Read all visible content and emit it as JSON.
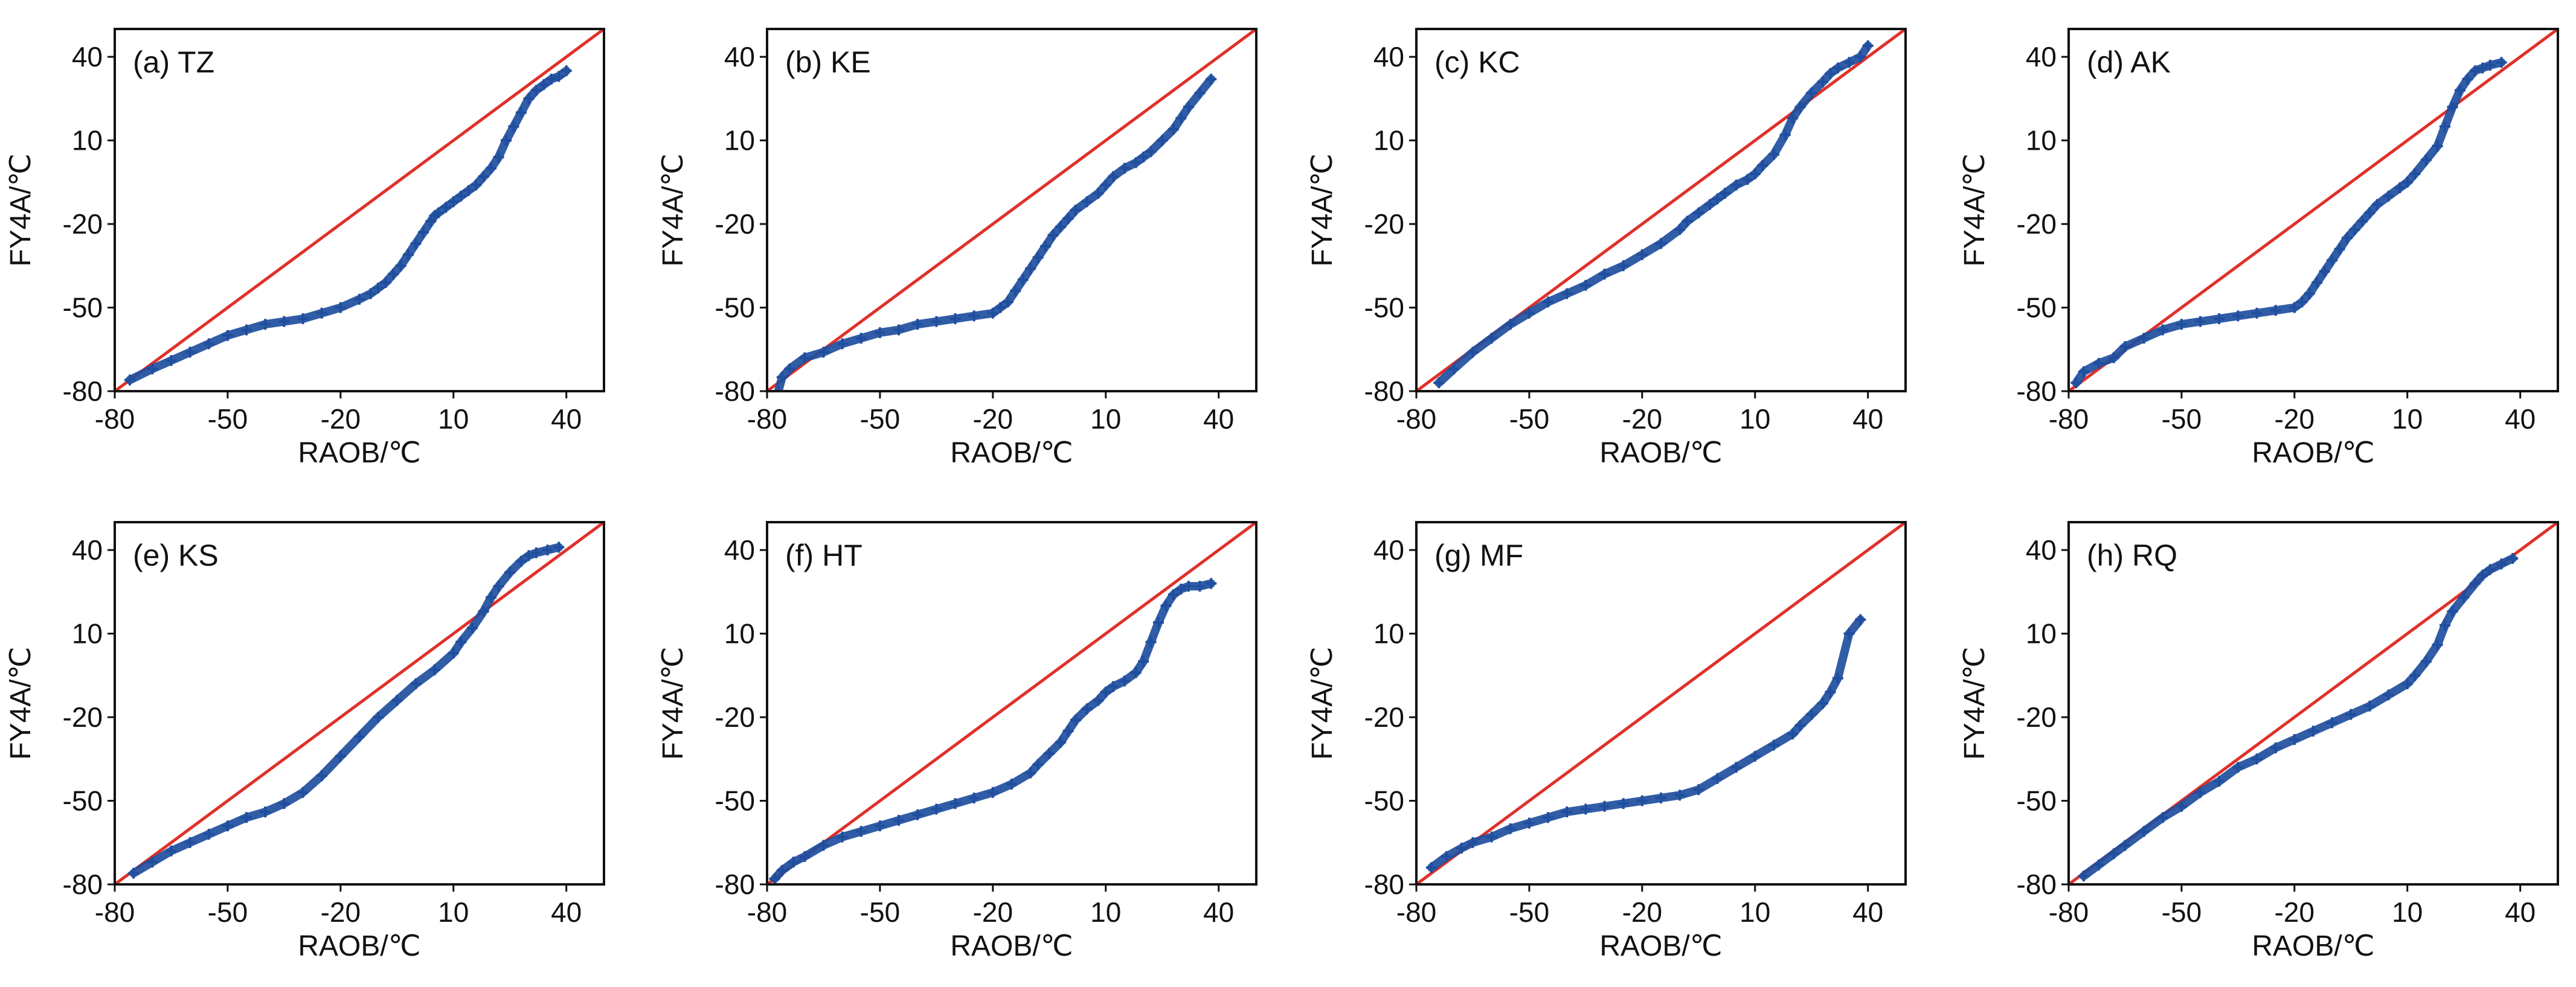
{
  "figure": {
    "description_title": "QQ-style scatter panels of FY4A vs RAOB temperature"
  },
  "colors": {
    "points": "#1f4e9e",
    "reference_line": "#e0302a",
    "axes": "#111111"
  },
  "chart_data": [
    {
      "type": "scatter",
      "title": "(a) TZ",
      "xlabel": "RAOB/℃",
      "ylabel": "FY4A/℃",
      "xlim": [
        -80,
        50
      ],
      "ylim": [
        -80,
        50
      ],
      "xticks": [
        -80,
        -50,
        -20,
        10,
        40
      ],
      "yticks": [
        -80,
        -50,
        -20,
        10,
        40
      ],
      "reference_line": "y = x",
      "series": [
        {
          "name": "FY4A vs RAOB",
          "x": [
            -76,
            -70,
            -65,
            -60,
            -55,
            -50,
            -45,
            -40,
            -35,
            -30,
            -25,
            -20,
            -15,
            -12,
            -10,
            -8,
            -6,
            -4,
            -2,
            0,
            2,
            4,
            5,
            6,
            8,
            10,
            12,
            14,
            16,
            18,
            20,
            22,
            24,
            26,
            28,
            30,
            32,
            34,
            36,
            38,
            40
          ],
          "y": [
            -76,
            -72,
            -69,
            -66,
            -63,
            -60,
            -58,
            -56,
            -55,
            -54,
            -52,
            -50,
            -47,
            -45,
            -43,
            -41,
            -38,
            -35,
            -31,
            -27,
            -23,
            -19,
            -17,
            -16,
            -14,
            -12,
            -10,
            -8,
            -6,
            -3,
            0,
            4,
            10,
            15,
            20,
            25,
            28,
            30,
            32,
            33,
            35
          ]
        }
      ]
    },
    {
      "type": "scatter",
      "title": "(b) KE",
      "xlabel": "RAOB/℃",
      "ylabel": "FY4A/℃",
      "xlim": [
        -80,
        50
      ],
      "ylim": [
        -80,
        50
      ],
      "xticks": [
        -80,
        -50,
        -20,
        10,
        40
      ],
      "yticks": [
        -80,
        -50,
        -20,
        10,
        40
      ],
      "reference_line": "y = x",
      "series": [
        {
          "name": "FY4A vs RAOB",
          "x": [
            -77,
            -76,
            -74,
            -70,
            -65,
            -60,
            -55,
            -50,
            -45,
            -40,
            -35,
            -30,
            -25,
            -20,
            -18,
            -16,
            -14,
            -12,
            -10,
            -8,
            -6,
            -4,
            -2,
            0,
            2,
            5,
            8,
            10,
            12,
            15,
            18,
            20,
            22,
            25,
            28,
            30,
            32,
            35,
            38
          ],
          "y": [
            -80,
            -75,
            -72,
            -68,
            -66,
            -63,
            -61,
            -59,
            -58,
            -56,
            -55,
            -54,
            -53,
            -52,
            -50,
            -48,
            -44,
            -40,
            -36,
            -32,
            -28,
            -24,
            -21,
            -18,
            -15,
            -12,
            -9,
            -6,
            -3,
            0,
            2,
            4,
            6,
            10,
            14,
            18,
            22,
            27,
            32
          ]
        }
      ]
    },
    {
      "type": "scatter",
      "title": "(c) KC",
      "xlabel": "RAOB/℃",
      "ylabel": "FY4A/℃",
      "xlim": [
        -80,
        50
      ],
      "ylim": [
        -80,
        50
      ],
      "xticks": [
        -80,
        -50,
        -20,
        10,
        40
      ],
      "yticks": [
        -80,
        -50,
        -20,
        10,
        40
      ],
      "reference_line": "y = x",
      "series": [
        {
          "name": "FY4A vs RAOB",
          "x": [
            -74,
            -70,
            -65,
            -60,
            -55,
            -50,
            -45,
            -40,
            -35,
            -30,
            -25,
            -20,
            -15,
            -10,
            -8,
            -5,
            -2,
            0,
            2,
            5,
            8,
            10,
            12,
            15,
            18,
            20,
            22,
            25,
            28,
            30,
            32,
            35,
            38,
            40
          ],
          "y": [
            -77,
            -72,
            -66,
            -61,
            -56,
            -52,
            -48,
            -45,
            -42,
            -38,
            -35,
            -31,
            -27,
            -22,
            -19,
            -16,
            -13,
            -11,
            -9,
            -6,
            -4,
            -2,
            1,
            5,
            12,
            18,
            22,
            27,
            31,
            34,
            36,
            38,
            40,
            44
          ]
        }
      ]
    },
    {
      "type": "scatter",
      "title": "(d) AK",
      "xlabel": "RAOB/℃",
      "ylabel": "FY4A/℃",
      "xlim": [
        -80,
        50
      ],
      "ylim": [
        -80,
        50
      ],
      "xticks": [
        -80,
        -50,
        -20,
        10,
        40
      ],
      "yticks": [
        -80,
        -50,
        -20,
        10,
        40
      ],
      "reference_line": "y = x",
      "series": [
        {
          "name": "FY4A vs RAOB",
          "x": [
            -78,
            -76,
            -72,
            -68,
            -65,
            -60,
            -55,
            -50,
            -45,
            -40,
            -35,
            -30,
            -25,
            -20,
            -18,
            -16,
            -14,
            -12,
            -10,
            -8,
            -6,
            -4,
            -2,
            0,
            2,
            5,
            8,
            10,
            12,
            15,
            18,
            20,
            22,
            24,
            26,
            28,
            30,
            32,
            35
          ],
          "y": [
            -77,
            -73,
            -70,
            -68,
            -64,
            -61,
            -58,
            -56,
            -55,
            -54,
            -53,
            -52,
            -51,
            -50,
            -48,
            -45,
            -41,
            -37,
            -33,
            -29,
            -25,
            -22,
            -19,
            -16,
            -13,
            -10,
            -7,
            -5,
            -2,
            3,
            8,
            15,
            22,
            28,
            32,
            35,
            36,
            37,
            38
          ]
        }
      ]
    },
    {
      "type": "scatter",
      "title": "(e) KS",
      "xlabel": "RAOB/℃",
      "ylabel": "FY4A/℃",
      "xlim": [
        -80,
        50
      ],
      "ylim": [
        -80,
        50
      ],
      "xticks": [
        -80,
        -50,
        -20,
        10,
        40
      ],
      "yticks": [
        -80,
        -50,
        -20,
        10,
        40
      ],
      "reference_line": "y = x",
      "series": [
        {
          "name": "FY4A vs RAOB",
          "x": [
            -75,
            -70,
            -65,
            -60,
            -55,
            -50,
            -45,
            -40,
            -35,
            -30,
            -25,
            -20,
            -15,
            -10,
            -5,
            0,
            5,
            10,
            12,
            15,
            18,
            20,
            22,
            25,
            28,
            30,
            32,
            35,
            38
          ],
          "y": [
            -76,
            -72,
            -68,
            -65,
            -62,
            -59,
            -56,
            -54,
            -51,
            -47,
            -41,
            -34,
            -27,
            -20,
            -14,
            -8,
            -3,
            3,
            7,
            12,
            18,
            23,
            27,
            32,
            36,
            38,
            39,
            40,
            41
          ]
        }
      ]
    },
    {
      "type": "scatter",
      "title": "(f) HT",
      "xlabel": "RAOB/℃",
      "ylabel": "FY4A/℃",
      "xlim": [
        -80,
        50
      ],
      "ylim": [
        -80,
        50
      ],
      "xticks": [
        -80,
        -50,
        -20,
        10,
        40
      ],
      "yticks": [
        -80,
        -50,
        -20,
        10,
        40
      ],
      "reference_line": "y = x",
      "series": [
        {
          "name": "FY4A vs RAOB",
          "x": [
            -78,
            -76,
            -73,
            -70,
            -65,
            -60,
            -55,
            -50,
            -45,
            -40,
            -35,
            -30,
            -25,
            -20,
            -15,
            -10,
            -8,
            -5,
            -2,
            0,
            2,
            5,
            8,
            10,
            12,
            15,
            18,
            20,
            22,
            24,
            26,
            28,
            30,
            32,
            35,
            38
          ],
          "y": [
            -78,
            -75,
            -72,
            -70,
            -66,
            -63,
            -61,
            -59,
            -57,
            -55,
            -53,
            -51,
            -49,
            -47,
            -44,
            -40,
            -37,
            -33,
            -29,
            -25,
            -21,
            -17,
            -14,
            -11,
            -9,
            -7,
            -4,
            0,
            7,
            14,
            20,
            24,
            26,
            27,
            27,
            28
          ]
        }
      ]
    },
    {
      "type": "scatter",
      "title": "(g) MF",
      "xlabel": "RAOB/℃",
      "ylabel": "FY4A/℃",
      "xlim": [
        -80,
        50
      ],
      "ylim": [
        -80,
        50
      ],
      "xticks": [
        -80,
        -50,
        -20,
        10,
        40
      ],
      "yticks": [
        -80,
        -50,
        -20,
        10,
        40
      ],
      "reference_line": "y = x",
      "series": [
        {
          "name": "FY4A vs RAOB",
          "x": [
            -76,
            -72,
            -68,
            -65,
            -60,
            -55,
            -50,
            -45,
            -40,
            -35,
            -30,
            -25,
            -20,
            -15,
            -10,
            -5,
            0,
            5,
            10,
            15,
            20,
            22,
            25,
            28,
            30,
            32,
            35,
            38
          ],
          "y": [
            -74,
            -70,
            -67,
            -65,
            -63,
            -60,
            -58,
            -56,
            -54,
            -53,
            -52,
            -51,
            -50,
            -49,
            -48,
            -46,
            -42,
            -38,
            -34,
            -30,
            -26,
            -23,
            -19,
            -15,
            -11,
            -6,
            10,
            15
          ]
        }
      ]
    },
    {
      "type": "scatter",
      "title": "(h) RQ",
      "xlabel": "RAOB/℃",
      "ylabel": "FY4A/℃",
      "xlim": [
        -80,
        50
      ],
      "ylim": [
        -80,
        50
      ],
      "xticks": [
        -80,
        -50,
        -20,
        10,
        40
      ],
      "yticks": [
        -80,
        -50,
        -20,
        10,
        40
      ],
      "reference_line": "y = x",
      "series": [
        {
          "name": "FY4A vs RAOB",
          "x": [
            -76,
            -72,
            -68,
            -65,
            -60,
            -55,
            -50,
            -45,
            -40,
            -35,
            -30,
            -25,
            -20,
            -15,
            -10,
            -5,
            0,
            5,
            10,
            12,
            15,
            18,
            20,
            22,
            25,
            28,
            30,
            32,
            35,
            38
          ],
          "y": [
            -77,
            -73,
            -69,
            -66,
            -61,
            -56,
            -52,
            -47,
            -43,
            -38,
            -35,
            -31,
            -28,
            -25,
            -22,
            -19,
            -16,
            -12,
            -8,
            -5,
            0,
            6,
            13,
            18,
            23,
            28,
            31,
            33,
            35,
            37
          ]
        }
      ]
    }
  ]
}
